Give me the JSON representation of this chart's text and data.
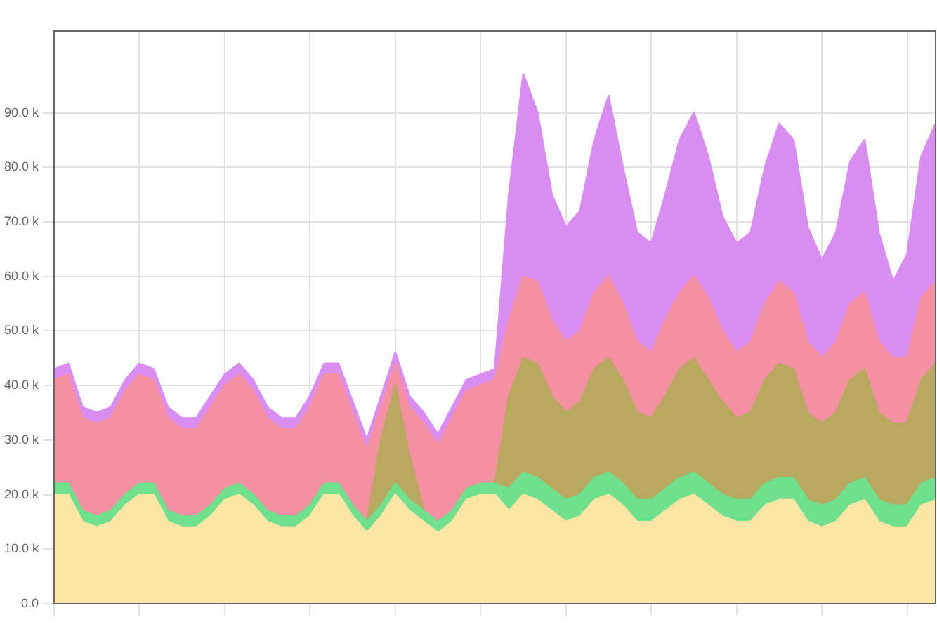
{
  "chart_data": {
    "type": "area",
    "stacked": true,
    "categories": [
      null,
      null,
      null,
      null,
      null,
      null,
      null,
      null,
      null,
      null,
      null,
      null,
      null,
      null,
      null,
      null,
      null,
      null,
      null,
      null,
      null,
      null,
      null,
      null,
      null,
      null,
      null,
      null,
      null,
      null,
      null,
      null,
      null,
      null,
      null,
      null,
      null,
      null,
      null,
      null,
      null,
      null,
      null,
      null,
      null,
      null,
      null,
      null,
      null,
      null,
      null,
      null,
      null,
      null,
      null,
      null,
      null,
      null,
      null,
      null,
      null,
      null,
      null
    ],
    "ylim": [
      0,
      105
    ],
    "yticks": [
      {
        "value": 0,
        "label": "0.0"
      },
      {
        "value": 10,
        "label": "10.0 k"
      },
      {
        "value": 20,
        "label": "20.0 k"
      },
      {
        "value": 30,
        "label": "30.0 k"
      },
      {
        "value": 40,
        "label": "40.0 k"
      },
      {
        "value": 50,
        "label": "50.0 k"
      },
      {
        "value": 60,
        "label": "60.0 k"
      },
      {
        "value": 70,
        "label": "70.0 k"
      },
      {
        "value": 80,
        "label": "80.0 k"
      },
      {
        "value": 90,
        "label": "90.0 k"
      }
    ],
    "tick_labels": "y",
    "grid": true,
    "legend": false,
    "marker": "none",
    "series": [
      {
        "color": "#fde5a6",
        "values": [
          20,
          20,
          15,
          14,
          15,
          18,
          20,
          20,
          15,
          14,
          14,
          16,
          19,
          20,
          18,
          15,
          14,
          14,
          16,
          20,
          20,
          16,
          13,
          16,
          20,
          17,
          15,
          13,
          15,
          19,
          20,
          20,
          17,
          20,
          19,
          17,
          15,
          16,
          19,
          20,
          18,
          15,
          15,
          17,
          19,
          20,
          18,
          16,
          15,
          15,
          18,
          19,
          19,
          15,
          14,
          15,
          18,
          19,
          15,
          14,
          14,
          18,
          19
        ]
      },
      {
        "color": "#6ee08e",
        "values": [
          2,
          2,
          2,
          2,
          2,
          2,
          2,
          2,
          2,
          2,
          2,
          2,
          2,
          2,
          2,
          2,
          2,
          2,
          2,
          2,
          2,
          2,
          2,
          2,
          2,
          2,
          2,
          2,
          2,
          2,
          2,
          2,
          4,
          4,
          4,
          4,
          4,
          4,
          4,
          4,
          4,
          4,
          4,
          4,
          4,
          4,
          4,
          4,
          4,
          4,
          4,
          4,
          4,
          4,
          4,
          4,
          4,
          4,
          4,
          4,
          4,
          4,
          4
        ]
      },
      {
        "color": "#b8a860",
        "values": [
          0,
          0,
          0,
          0,
          0,
          0,
          0,
          0,
          0,
          0,
          0,
          0,
          0,
          0,
          0,
          0,
          0,
          0,
          0,
          0,
          0,
          0,
          0,
          12,
          18,
          8,
          0,
          0,
          0,
          0,
          0,
          0,
          17,
          21,
          21,
          17,
          16,
          17,
          20,
          21,
          19,
          16,
          15,
          17,
          20,
          21,
          19,
          17,
          15,
          16,
          19,
          21,
          20,
          16,
          15,
          16,
          19,
          20,
          16,
          15,
          15,
          19,
          21
        ]
      },
      {
        "color": "#f590a2",
        "values": [
          19,
          20,
          17,
          17,
          17,
          19,
          20,
          19,
          17,
          16,
          16,
          18,
          19,
          20,
          19,
          17,
          16,
          16,
          18,
          20,
          20,
          17,
          13,
          6,
          4,
          9,
          16,
          14,
          17,
          18,
          18,
          19,
          14,
          15,
          15,
          14,
          13,
          13,
          14,
          15,
          14,
          13,
          12,
          14,
          14,
          15,
          15,
          13,
          12,
          13,
          14,
          15,
          14,
          13,
          12,
          13,
          14,
          14,
          13,
          12,
          12,
          15,
          15
        ]
      },
      {
        "color": "#d98cf2",
        "values": [
          2,
          2,
          2,
          2,
          2,
          2,
          2,
          2,
          2,
          2,
          2,
          2,
          2,
          2,
          2,
          2,
          2,
          2,
          2,
          2,
          2,
          2,
          2,
          2,
          2,
          2,
          2,
          2,
          2,
          2,
          2,
          2,
          23,
          37,
          31,
          23,
          21,
          22,
          28,
          33,
          25,
          20,
          20,
          23,
          28,
          30,
          26,
          21,
          20,
          20,
          25,
          29,
          28,
          21,
          18,
          20,
          26,
          28,
          20,
          14,
          19,
          26,
          29
        ]
      }
    ]
  }
}
